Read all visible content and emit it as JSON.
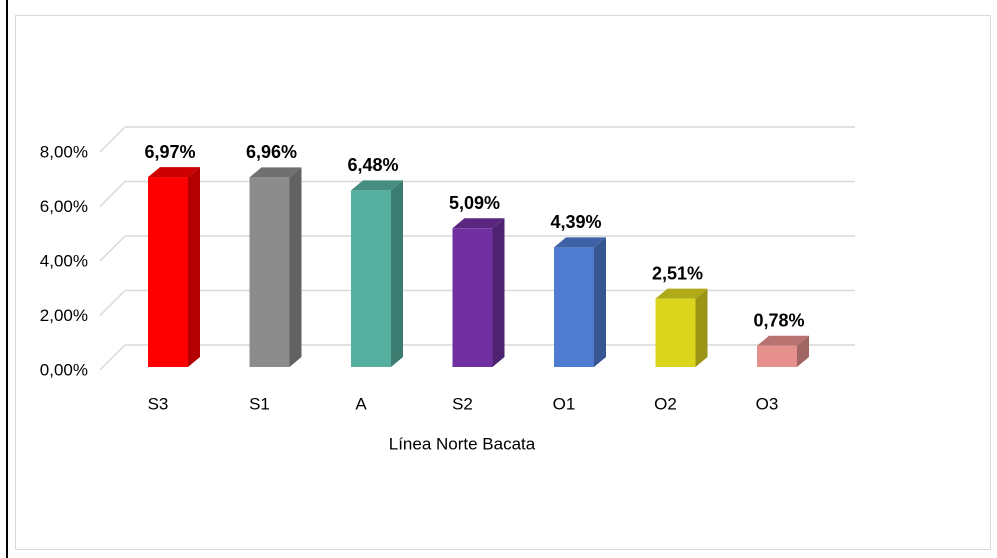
{
  "chart_data": {
    "type": "bar3d",
    "x_label": "Línea Norte Bacata",
    "categories": [
      "S3",
      "S1",
      "A",
      "S2",
      "O1",
      "O2",
      "O3"
    ],
    "values": [
      6.97,
      6.96,
      6.48,
      5.09,
      4.39,
      2.51,
      0.78
    ],
    "value_labels": [
      "6,97%",
      "6,96%",
      "6,48%",
      "5,09%",
      "4,39%",
      "2,51%",
      "0,78%"
    ],
    "colors": [
      "#ff0000",
      "#8c8c8c",
      "#55b0a0",
      "#7030a0",
      "#4f7bd0",
      "#dcd51e",
      "#e6908d"
    ],
    "ylim": [
      0,
      8
    ],
    "yticks": [
      {
        "value": 0,
        "label": "0,00%"
      },
      {
        "value": 2,
        "label": "2,00%"
      },
      {
        "value": 4,
        "label": "4,00%"
      },
      {
        "value": 6,
        "label": "6,00%"
      },
      {
        "value": 8,
        "label": "8,00%"
      }
    ],
    "grid": true
  }
}
